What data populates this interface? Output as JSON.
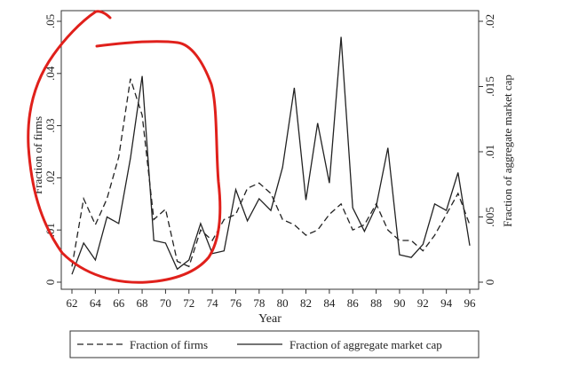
{
  "chart_data": {
    "type": "line",
    "xlabel": "Year",
    "ylabel_left": "Fraction of firms",
    "ylabel_right": "Fraction of aggregate market cap",
    "x": [
      62,
      63,
      64,
      65,
      66,
      67,
      68,
      69,
      70,
      71,
      72,
      73,
      74,
      75,
      76,
      77,
      78,
      79,
      80,
      81,
      82,
      83,
      84,
      85,
      86,
      87,
      88,
      89,
      90,
      91,
      92,
      93,
      94,
      95,
      96
    ],
    "xticks": [
      "62",
      "64",
      "66",
      "68",
      "70",
      "72",
      "74",
      "76",
      "78",
      "80",
      "82",
      "84",
      "86",
      "88",
      "90",
      "92",
      "94",
      "96"
    ],
    "left_axis": {
      "ylim": [
        0,
        0.05
      ],
      "ticks": [
        "0",
        ".01",
        ".02",
        ".03",
        ".04",
        ".05"
      ]
    },
    "right_axis": {
      "ylim": [
        0,
        0.02
      ],
      "ticks": [
        "0",
        ".005",
        ".01",
        ".015",
        ".02"
      ]
    },
    "series": [
      {
        "name": "Fraction of firms",
        "axis": "left",
        "style": "dashed",
        "values": [
          0.003,
          0.016,
          0.011,
          0.016,
          0.024,
          0.039,
          0.032,
          0.012,
          0.014,
          0.004,
          0.003,
          0.01,
          0.008,
          0.012,
          0.013,
          0.018,
          0.019,
          0.017,
          0.012,
          0.011,
          0.009,
          0.01,
          0.013,
          0.015,
          0.01,
          0.011,
          0.015,
          0.01,
          0.008,
          0.008,
          0.006,
          0.009,
          0.013,
          0.017,
          0.011
        ]
      },
      {
        "name": "Fraction of aggregate market cap",
        "axis": "right",
        "style": "solid",
        "values": [
          0.0006,
          0.003,
          0.0017,
          0.005,
          0.0045,
          0.0095,
          0.0158,
          0.0032,
          0.003,
          0.001,
          0.0017,
          0.0045,
          0.0022,
          0.0024,
          0.0071,
          0.0047,
          0.0064,
          0.0055,
          0.0088,
          0.0149,
          0.0063,
          0.0122,
          0.0076,
          0.0188,
          0.0057,
          0.0039,
          0.0058,
          0.0103,
          0.0021,
          0.0019,
          0.0029,
          0.006,
          0.0055,
          0.0084,
          0.0028
        ]
      }
    ],
    "legend": {
      "position": "bottom",
      "entries": [
        "Fraction of firms",
        "Fraction of aggregate market cap"
      ]
    },
    "grid": false,
    "annotation_color": "#e0201b"
  }
}
